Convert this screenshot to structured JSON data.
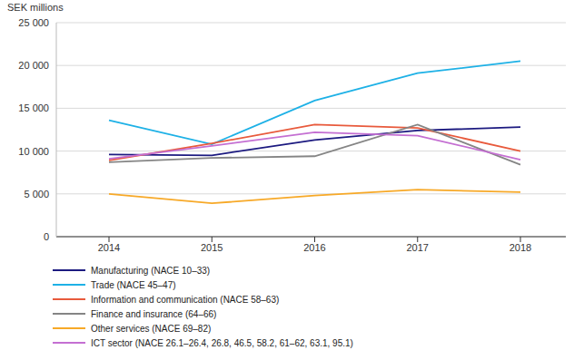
{
  "chart_data": {
    "type": "line",
    "y_label": "SEK millions",
    "categories": [
      "2014",
      "2015",
      "2016",
      "2017",
      "2018"
    ],
    "series": [
      {
        "name": "Manufacturing (NACE 10–33)",
        "color": "#1c1a80",
        "values": [
          9600,
          9500,
          11300,
          12400,
          12800
        ]
      },
      {
        "name": "Trade (NACE 45–47)",
        "color": "#1eb1e6",
        "values": [
          13600,
          10800,
          15900,
          19100,
          20500
        ]
      },
      {
        "name": "Information and communication (NACE 58–63)",
        "color": "#e85a3c",
        "values": [
          8900,
          10900,
          13100,
          12700,
          10000
        ]
      },
      {
        "name": "Finance and insurance (64–66)",
        "color": "#858585",
        "values": [
          8700,
          9200,
          9400,
          13100,
          8400
        ]
      },
      {
        "name": "Other services (NACE 69–82)",
        "color": "#f7a928",
        "values": [
          5000,
          3900,
          4800,
          5500,
          5200
        ]
      },
      {
        "name": "ICT sector (NACE 26.1–26.4, 26.8, 46.5, 58.2, 61–62, 63.1, 95.1)",
        "color": "#c46fd2",
        "values": [
          9100,
          10600,
          12200,
          11800,
          9000
        ]
      }
    ],
    "ylim": [
      0,
      25000
    ],
    "yticks": [
      0,
      {
        "value": 5000,
        "label": "5 000"
      },
      {
        "value": 10000,
        "label": "10 000"
      },
      {
        "value": 15000,
        "label": "15 000"
      },
      {
        "value": 20000,
        "label": "20 000"
      },
      {
        "value": 25000,
        "label": "25 000"
      }
    ],
    "grid": true,
    "legend": "bottom"
  }
}
